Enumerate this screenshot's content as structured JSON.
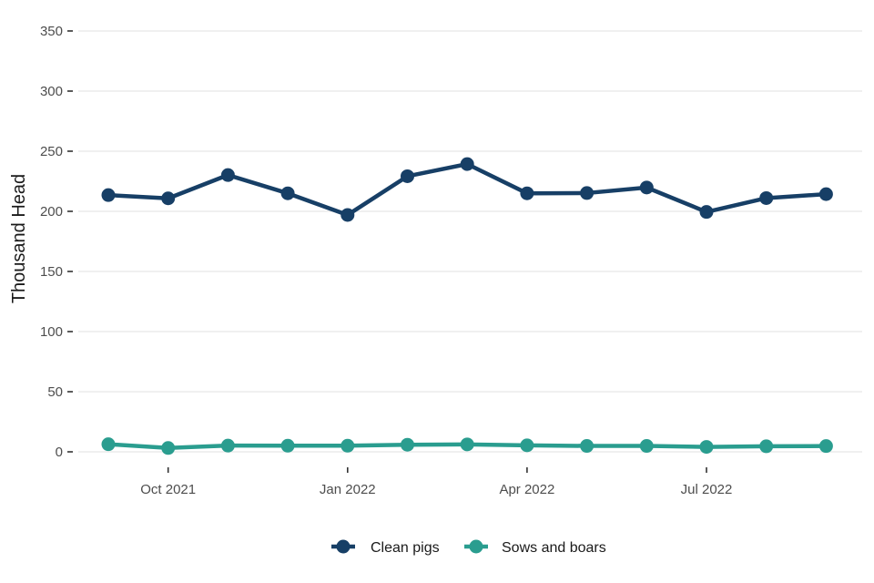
{
  "chart_data": {
    "type": "line",
    "title": "",
    "xlabel": "",
    "ylabel": "Thousand Head",
    "ylim": [
      0,
      350
    ],
    "yticks": [
      0,
      50,
      100,
      150,
      200,
      250,
      300,
      350
    ],
    "x": [
      "2021-09",
      "2021-10",
      "2021-11",
      "2021-12",
      "2022-01",
      "2022-02",
      "2022-03",
      "2022-04",
      "2022-05",
      "2022-06",
      "2022-07",
      "2022-08",
      "2022-09"
    ],
    "xtick_labels": [
      {
        "label": "Oct 2021",
        "month": "2021-10"
      },
      {
        "label": "Jan 2022",
        "month": "2022-01"
      },
      {
        "label": "Apr 2022",
        "month": "2022-04"
      },
      {
        "label": "Jul 2022",
        "month": "2022-07"
      }
    ],
    "grid": "horizontal",
    "legend_position": "bottom",
    "series": [
      {
        "name": "Clean pigs",
        "color": "#173f66",
        "values": [
          213.5,
          210.8,
          230.2,
          215.0,
          197.0,
          229.2,
          239.3,
          215.0,
          215.2,
          219.8,
          199.5,
          211.0,
          214.3
        ]
      },
      {
        "name": "Sows and boars",
        "color": "#2a9d8f",
        "values": [
          6.3,
          3.2,
          5.2,
          5.1,
          5.1,
          5.9,
          6.2,
          5.4,
          4.9,
          4.9,
          4.1,
          4.6,
          4.8
        ]
      }
    ]
  }
}
